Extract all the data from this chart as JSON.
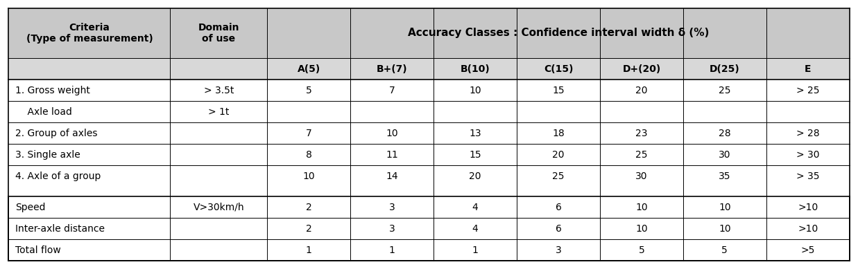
{
  "header_row1_col1": "Criteria\n(Type of measurement)",
  "header_row1_col2": "Domain\nof use",
  "header_row1_span": "Accuracy Classes : Confidence interval width δ (%)",
  "subheaders": [
    "A(5)",
    "B+(7)",
    "B(10)",
    "C(15)",
    "D+(20)",
    "D(25)",
    "E"
  ],
  "rows_top": [
    [
      "1. Gross weight",
      "> 3.5t",
      "5",
      "7",
      "10",
      "15",
      "20",
      "25",
      "> 25"
    ],
    [
      "    Axle load",
      "> 1t",
      "",
      "",
      "",
      "",
      "",
      "",
      ""
    ],
    [
      "2. Group of axles",
      "",
      "7",
      "10",
      "13",
      "18",
      "23",
      "28",
      "> 28"
    ],
    [
      "3. Single axle",
      "",
      "8",
      "11",
      "15",
      "20",
      "25",
      "30",
      "> 30"
    ],
    [
      "4. Axle of a group",
      "",
      "10",
      "14",
      "20",
      "25",
      "30",
      "35",
      "> 35"
    ]
  ],
  "rows_bottom": [
    [
      "Speed",
      "V>30km/h",
      "2",
      "3",
      "4",
      "6",
      "10",
      "10",
      ">10"
    ],
    [
      "Inter-axle distance",
      "",
      "2",
      "3",
      "4",
      "6",
      "10",
      "10",
      ">10"
    ],
    [
      "Total flow",
      "",
      "1",
      "1",
      "1",
      "3",
      "5",
      "5",
      ">5"
    ]
  ],
  "header_bg": "#C8C8C8",
  "subheader_bg": "#D8D8D8",
  "white_bg": "#FFFFFF",
  "border_color": "#000000",
  "text_color": "#000000",
  "header_fontsize": 10,
  "data_fontsize": 10,
  "figsize": [
    12.37,
    3.89
  ],
  "dpi": 100
}
